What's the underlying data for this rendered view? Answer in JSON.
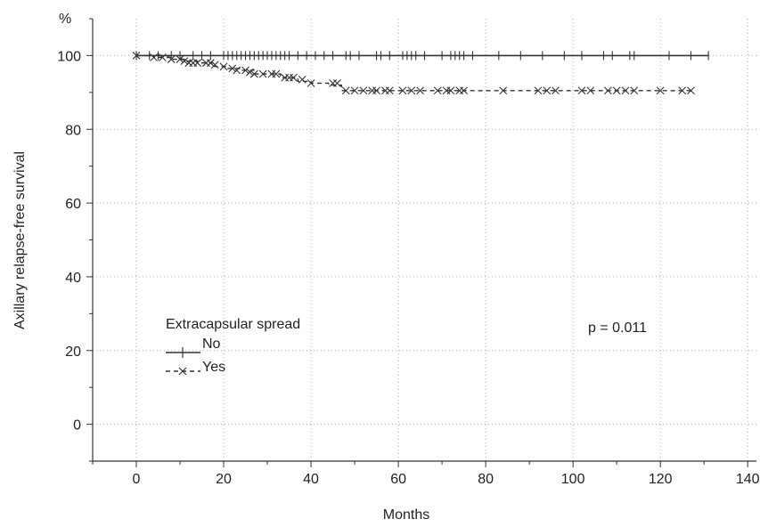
{
  "chart_data": {
    "type": "line",
    "subtype": "kaplan-meier step",
    "ylabel": "Axillary relapse-free survival",
    "y_unit": "%",
    "xlabel": "Months",
    "xlim": [
      -10,
      142
    ],
    "ylim": [
      -10,
      110
    ],
    "x_ticks": [
      0,
      20,
      40,
      60,
      80,
      100,
      120,
      140
    ],
    "y_ticks": [
      0,
      20,
      40,
      60,
      80,
      100
    ],
    "grid": true,
    "grid_style": "dotted",
    "legend": {
      "title": "Extracapsular spread",
      "placement": "lower-left",
      "entries": [
        {
          "label": "No",
          "style": "solid",
          "marker": "plus"
        },
        {
          "label": "Yes",
          "style": "dashed",
          "marker": "x"
        }
      ]
    },
    "annotation": "p = 0.011",
    "series": [
      {
        "name": "No",
        "line_style": "solid",
        "marker": "plus",
        "steps": [
          [
            0,
            100
          ],
          [
            131,
            100
          ]
        ],
        "censored": [
          [
            0,
            100
          ],
          [
            3,
            100
          ],
          [
            5,
            100
          ],
          [
            8,
            100
          ],
          [
            10,
            100
          ],
          [
            13,
            100
          ],
          [
            15,
            100
          ],
          [
            17,
            100
          ],
          [
            20,
            100
          ],
          [
            21,
            100
          ],
          [
            22,
            100
          ],
          [
            23,
            100
          ],
          [
            24,
            100
          ],
          [
            25,
            100
          ],
          [
            26,
            100
          ],
          [
            27,
            100
          ],
          [
            28,
            100
          ],
          [
            29,
            100
          ],
          [
            30,
            100
          ],
          [
            31,
            100
          ],
          [
            32,
            100
          ],
          [
            33,
            100
          ],
          [
            34,
            100
          ],
          [
            35,
            100
          ],
          [
            37,
            100
          ],
          [
            39,
            100
          ],
          [
            41,
            100
          ],
          [
            43,
            100
          ],
          [
            45,
            100
          ],
          [
            48,
            100
          ],
          [
            49,
            100
          ],
          [
            51,
            100
          ],
          [
            55,
            100
          ],
          [
            56,
            100
          ],
          [
            58,
            100
          ],
          [
            61,
            100
          ],
          [
            62,
            100
          ],
          [
            63,
            100
          ],
          [
            64,
            100
          ],
          [
            66,
            100
          ],
          [
            70,
            100
          ],
          [
            72,
            100
          ],
          [
            73,
            100
          ],
          [
            74,
            100
          ],
          [
            75,
            100
          ],
          [
            77,
            100
          ],
          [
            83,
            100
          ],
          [
            88,
            100
          ],
          [
            93,
            100
          ],
          [
            98,
            100
          ],
          [
            102,
            100
          ],
          [
            107,
            100
          ],
          [
            109,
            100
          ],
          [
            113,
            100
          ],
          [
            114,
            100
          ],
          [
            122,
            100
          ],
          [
            127,
            100
          ],
          [
            131,
            100
          ]
        ]
      },
      {
        "name": "Yes",
        "line_style": "dashed",
        "marker": "x",
        "steps": [
          [
            0,
            100
          ],
          [
            4,
            99.5
          ],
          [
            8,
            99
          ],
          [
            11,
            98.5
          ],
          [
            14,
            98
          ],
          [
            18,
            97
          ],
          [
            21,
            96.5
          ],
          [
            24,
            96
          ],
          [
            27,
            95
          ],
          [
            33,
            94
          ],
          [
            37,
            93
          ],
          [
            40,
            92.5
          ],
          [
            44,
            92
          ],
          [
            47,
            90.5
          ],
          [
            127,
            90.5
          ]
        ],
        "censored": [
          [
            0,
            100
          ],
          [
            4,
            99.5
          ],
          [
            6,
            99.5
          ],
          [
            8,
            99
          ],
          [
            10,
            99
          ],
          [
            11,
            98.5
          ],
          [
            12,
            98
          ],
          [
            13,
            98
          ],
          [
            14,
            98
          ],
          [
            16,
            98
          ],
          [
            17,
            98
          ],
          [
            18,
            97.5
          ],
          [
            20,
            97
          ],
          [
            22,
            96.5
          ],
          [
            23,
            96
          ],
          [
            25,
            96
          ],
          [
            26,
            95.5
          ],
          [
            27,
            95
          ],
          [
            29,
            95
          ],
          [
            31,
            95
          ],
          [
            32,
            95
          ],
          [
            34,
            94
          ],
          [
            35,
            94
          ],
          [
            36,
            94
          ],
          [
            38,
            93.5
          ],
          [
            40,
            92.5
          ],
          [
            45,
            92.5
          ],
          [
            46,
            92.5
          ],
          [
            48,
            90.5
          ],
          [
            50,
            90.5
          ],
          [
            52,
            90.5
          ],
          [
            54,
            90.5
          ],
          [
            55,
            90.5
          ],
          [
            57,
            90.5
          ],
          [
            58,
            90.5
          ],
          [
            61,
            90.5
          ],
          [
            63,
            90.5
          ],
          [
            65,
            90.5
          ],
          [
            69,
            90.5
          ],
          [
            71,
            90.5
          ],
          [
            72,
            90.5
          ],
          [
            74,
            90.5
          ],
          [
            75,
            90.5
          ],
          [
            84,
            90.5
          ],
          [
            92,
            90.5
          ],
          [
            94,
            90.5
          ],
          [
            96,
            90.5
          ],
          [
            102,
            90.5
          ],
          [
            104,
            90.5
          ],
          [
            108,
            90.5
          ],
          [
            110,
            90.5
          ],
          [
            112,
            90.5
          ],
          [
            114,
            90.5
          ],
          [
            120,
            90.5
          ],
          [
            125,
            90.5
          ],
          [
            127,
            90.5
          ]
        ]
      }
    ]
  }
}
